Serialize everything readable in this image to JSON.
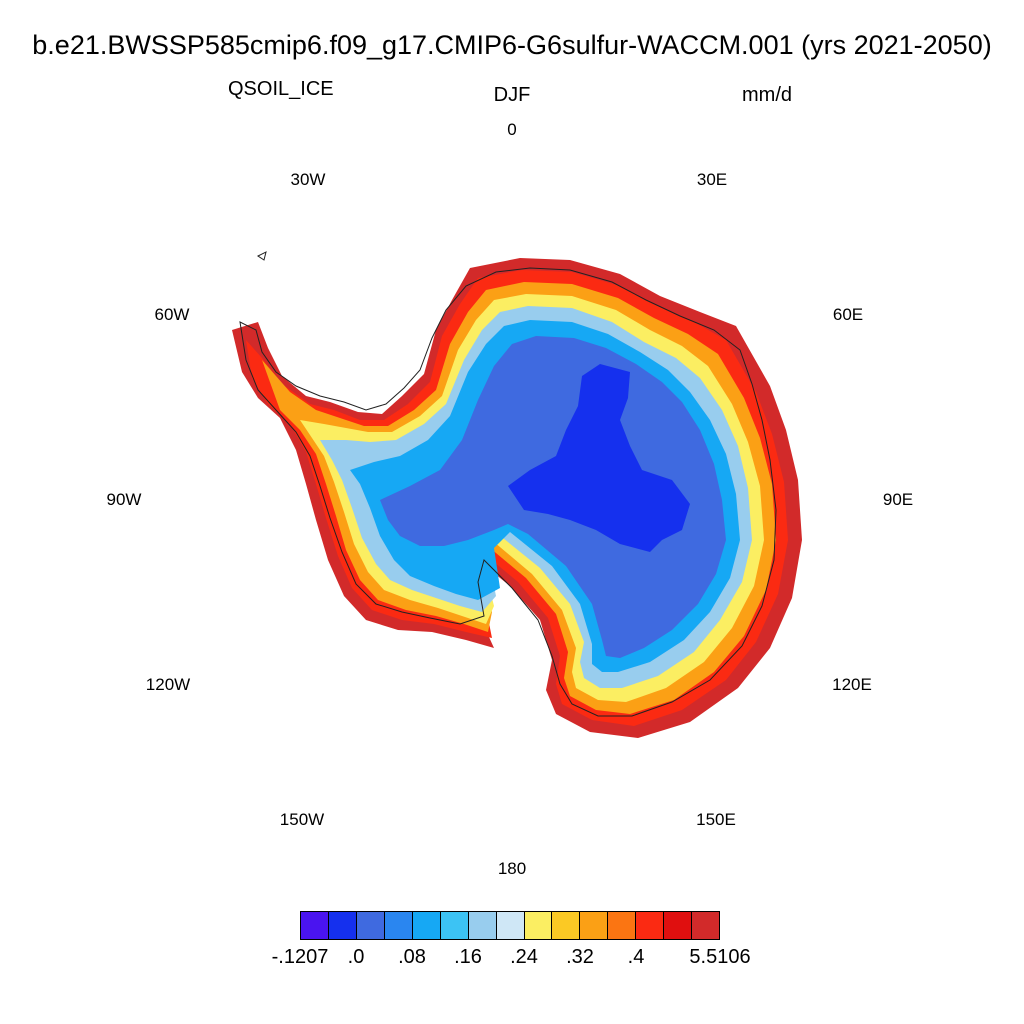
{
  "title": "b.e21.BWSSP585cmip6.f09_g17.CMIP6-G6sulfur-WACCM.001 (yrs 2021-2050)",
  "variable": "QSOIL_ICE",
  "season": "DJF",
  "units": "mm/d",
  "projection": "south-polar-stereographic",
  "longitude_labels": [
    "0",
    "30E",
    "60E",
    "90E",
    "120E",
    "150E",
    "180",
    "150W",
    "120W",
    "90W",
    "60W",
    "30W"
  ],
  "colorbar": {
    "colors": [
      "#4a14f0",
      "#1530ee",
      "#3f6ae0",
      "#2a86f0",
      "#16a8f4",
      "#3cc3f4",
      "#98cdee",
      "#cfe7f6",
      "#fbee62",
      "#fbc924",
      "#fba015",
      "#fb7512",
      "#fb2a12",
      "#e00f0f",
      "#d22a2a"
    ],
    "labels": [
      "-.1207",
      ".0",
      ".08",
      ".16",
      ".24",
      ".32",
      ".4",
      "5.5106"
    ]
  }
}
